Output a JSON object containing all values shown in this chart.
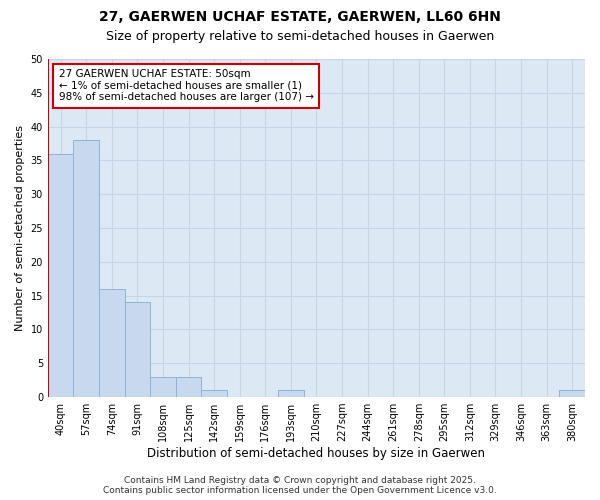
{
  "title1": "27, GAERWEN UCHAF ESTATE, GAERWEN, LL60 6HN",
  "title2": "Size of property relative to semi-detached houses in Gaerwen",
  "xlabel": "Distribution of semi-detached houses by size in Gaerwen",
  "ylabel": "Number of semi-detached properties",
  "categories": [
    "40sqm",
    "57sqm",
    "74sqm",
    "91sqm",
    "108sqm",
    "125sqm",
    "142sqm",
    "159sqm",
    "176sqm",
    "193sqm",
    "210sqm",
    "227sqm",
    "244sqm",
    "261sqm",
    "278sqm",
    "295sqm",
    "312sqm",
    "329sqm",
    "346sqm",
    "363sqm",
    "380sqm"
  ],
  "values": [
    36,
    38,
    16,
    14,
    3,
    3,
    1,
    0,
    0,
    1,
    0,
    0,
    0,
    0,
    0,
    0,
    0,
    0,
    0,
    0,
    1
  ],
  "bar_color": "#c8d9ef",
  "bar_edge_color": "#8ab4d8",
  "annotation_text": "27 GAERWEN UCHAF ESTATE: 50sqm\n← 1% of semi-detached houses are smaller (1)\n98% of semi-detached houses are larger (107) →",
  "annotation_box_color": "#ffffff",
  "annotation_border_color": "#cc0000",
  "grid_color": "#c8d4e8",
  "background_color": "#dde8f5",
  "ylim": [
    0,
    50
  ],
  "yticks": [
    0,
    5,
    10,
    15,
    20,
    25,
    30,
    35,
    40,
    45,
    50
  ],
  "footer1": "Contains HM Land Registry data © Crown copyright and database right 2025.",
  "footer2": "Contains public sector information licensed under the Open Government Licence v3.0.",
  "title1_fontsize": 10,
  "title2_fontsize": 9,
  "xlabel_fontsize": 8.5,
  "ylabel_fontsize": 8,
  "tick_fontsize": 7,
  "annotation_fontsize": 7.5,
  "footer_fontsize": 6.5
}
